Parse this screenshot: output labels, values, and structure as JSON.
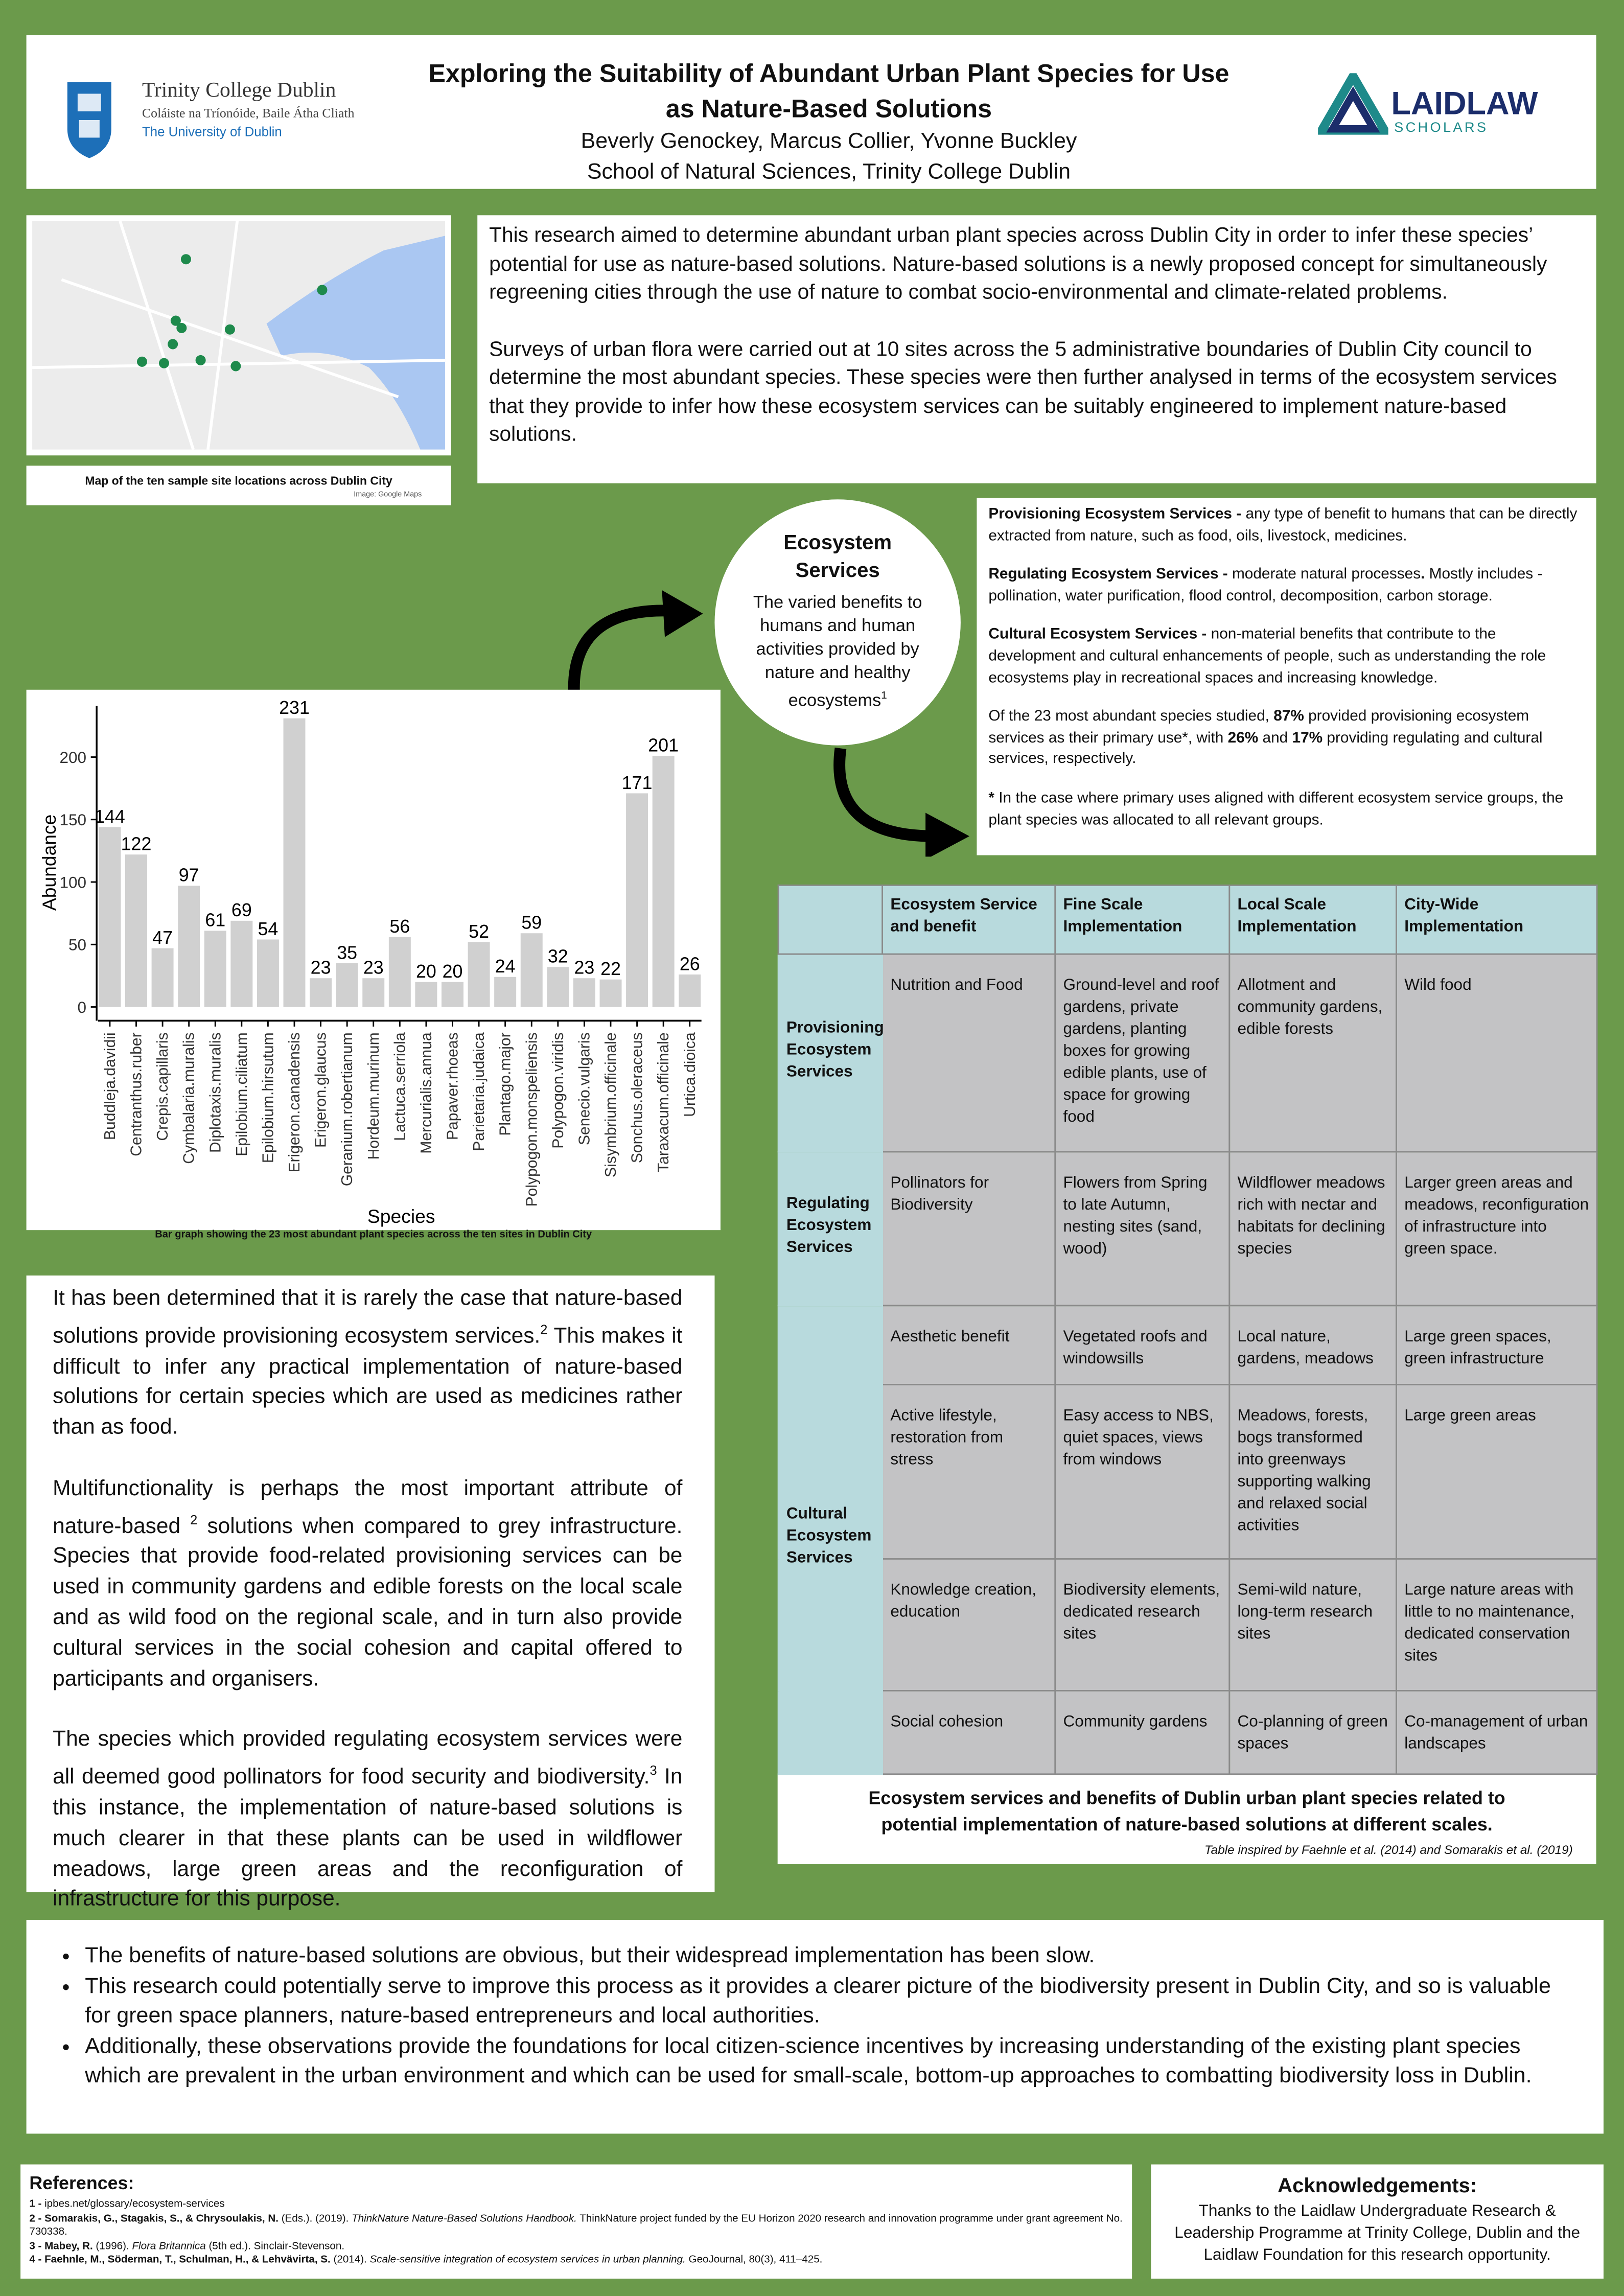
{
  "header": {
    "title": "Exploring the Suitability of Abundant Urban Plant Species for Use as Nature-Based Solutions",
    "authors": "Beverly Genockey, Marcus Collier, Yvonne Buckley",
    "affiliation": "School of Natural Sciences, Trinity College Dublin",
    "tcd": {
      "name": "Trinity College Dublin",
      "irish": "Coláiste na Tríonóide, Baile Átha Cliath",
      "university": "The University of Dublin"
    },
    "laidlaw": {
      "name": "LAIDLAW",
      "sub": "SCHOLARS"
    }
  },
  "map": {
    "caption": "Map of the ten sample site locations across Dublin City",
    "credit": "Image: Google Maps"
  },
  "intro": [
    "This research aimed to determine abundant urban plant species across Dublin City in order to infer these species’ potential for use as nature-based solutions. Nature-based solutions is a newly proposed concept for simultaneously regreening cities through the use of nature to combat socio-environmental and climate-related problems.",
    "Surveys of urban flora were carried out at 10 sites across the 5 administrative boundaries of Dublin City council to determine the most abundant species. These species were then further analysed in terms of the ecosystem services that they provide to infer how these ecosystem services can be suitably engineered to implement nature-based solutions."
  ],
  "circle": {
    "title": "Ecosystem Services",
    "text": [
      "The varied benefits to humans and human activities provided by nature and healthy ecosystems",
      {
        "text": "1",
        "sup": true
      }
    ]
  },
  "definitions": [
    [
      {
        "text": "Provisioning Ecosystem Services -",
        "b": true
      },
      " any type of benefit to humans that can be directly extracted from nature, such as food, oils, livestock, medicines."
    ],
    [
      {
        "text": "Regulating Ecosystem Services -",
        "b": true
      },
      " moderate natural processes",
      {
        "text": ".",
        "b": true
      },
      " Mostly includes - pollination, water purification, flood control, decomposition, carbon storage."
    ],
    [
      {
        "text": "Cultural Ecosystem Services -",
        "b": true
      },
      " non-material benefits that contribute to the development and cultural enhancements of people, such as understanding the role ecosystems play in recreational spaces and increasing knowledge."
    ],
    [
      "Of the 23 most abundant species studied, ",
      {
        "text": "87%",
        "b": true
      },
      " provided provisioning ecosystem services as their primary use*, with ",
      {
        "text": "26%",
        "b": true
      },
      " and ",
      {
        "text": "17%",
        "b": true
      },
      " providing regulating and cultural services, respectively."
    ],
    [
      {
        "text": "*",
        "b": true
      },
      " In the case where primary uses aligned with different ecosystem service groups, the plant species was allocated to all relevant groups."
    ]
  ],
  "chart_data": {
    "type": "bar",
    "caption": "Bar graph showing the 23 most abundant plant species across the ten sites in Dublin City",
    "x_label": "Species",
    "y_label": "Abundance",
    "categories": [
      "Buddleja.davidii",
      "Centranthus.ruber",
      "Crepis.capillaris",
      "Cymbalaria.muralis",
      "Diplotaxis.muralis",
      "Epilobium.ciliatum",
      "Epilobium.hirsutum",
      "Erigeron.canadensis",
      "Erigeron.glaucus",
      "Geranium.robertianum",
      "Hordeum.murinum",
      "Lactuca.serriola",
      "Mercurialis.annua",
      "Papaver.rhoeas",
      "Parietaria.judaica",
      "Plantago.major",
      "Polypogon.monspeliensis",
      "Polypogon.viridis",
      "Senecio.vulgaris",
      "Sisymbrium.officinale",
      "Sonchus.oleraceus",
      "Taraxacum.officinale",
      "Urtica.dioica"
    ],
    "values": [
      144,
      122,
      47,
      97,
      61,
      69,
      54,
      231,
      23,
      35,
      23,
      56,
      20,
      20,
      52,
      24,
      59,
      32,
      23,
      22,
      171,
      201,
      26
    ],
    "color": "#d0d0d0",
    "ylim": [
      -11,
      241
    ],
    "yticks": [
      0,
      50,
      100,
      150,
      200
    ],
    "grid": false
  },
  "discussion": [
    [
      "It has been determined that it is rarely the case that nature-based solutions provide provisioning ecosystem services.",
      {
        "text": "2",
        "sup": true
      },
      " This makes it difficult to infer any practical implementation of nature-based solutions for certain species which are used as medicines rather than as food."
    ],
    [
      "Multifunctionality is perhaps the most important attribute of nature-based ",
      {
        "text": "2",
        "sup": true
      },
      " solutions when compared to grey infrastructure. Species that provide food-related provisioning services can be used in community gardens and edible forests on the local scale and as wild food on the regional scale, and in turn also provide cultural services in the social cohesion and capital offered to participants and organisers."
    ],
    [
      "The species which provided regulating ecosystem services were all deemed good pollinators for food security and biodiversity.",
      {
        "text": "3",
        "sup": true
      },
      " In this instance, the implementation of nature-based solutions is much clearer in that these plants can be used in wildflower meadows, large green areas and the reconfiguration of infrastructure for this purpose."
    ]
  ],
  "table": {
    "header": [
      "Ecosystem Service and benefit",
      "Fine Scale Implementation",
      "Local Scale Implementation",
      "City-Wide Implementation"
    ],
    "groups": [
      {
        "name": "Provisioning Ecosystem Services",
        "rows": [
          [
            "Nutrition and Food",
            "Ground-level and roof gardens, private gardens, planting boxes for growing edible plants, use of space for growing food",
            "Allotment and community gardens, edible forests",
            "Wild food"
          ]
        ]
      },
      {
        "name": "Regulating Ecosystem Services",
        "rows": [
          [
            "Pollinators for Biodiversity",
            "Flowers from Spring to late Autumn, nesting sites (sand, wood)",
            "Wildflower meadows rich with nectar and habitats for declining species",
            "Larger green areas and meadows, reconfiguration of infrastructure into green space."
          ]
        ]
      },
      {
        "name": "Cultural Ecosystem Services",
        "rows": [
          [
            "Aesthetic benefit",
            "Vegetated roofs and windowsills",
            "Local nature, gardens, meadows",
            "Large green spaces, green infrastructure"
          ],
          [
            "Active lifestyle, restoration from stress",
            "Easy access to NBS, quiet spaces, views from windows",
            "Meadows, forests, bogs transformed into greenways supporting walking and relaxed social activities",
            "Large green areas"
          ],
          [
            "Knowledge creation, education",
            "Biodiversity elements, dedicated research sites",
            "Semi-wild nature, long-term research sites",
            "Large nature areas with little to no maintenance, dedicated conservation sites"
          ],
          [
            "Social cohesion",
            "Community gardens",
            "Co-planning of green spaces",
            "Co-management of urban landscapes"
          ]
        ]
      }
    ],
    "caption": "Ecosystem services and benefits of Dublin urban plant species related to potential implementation of nature-based solutions at different scales.",
    "note": "Table inspired by Faehnle et al. (2014) and Somarakis et al. (2019)"
  },
  "conclusions": [
    "The benefits of nature-based solutions are obvious, but their widespread implementation has been slow.",
    "This research could potentially serve to improve this process as it provides a clearer picture of the biodiversity present in Dublin City, and so is valuable for green space planners, nature-based entrepreneurs and local authorities.",
    "Additionally, these observations provide the foundations for local citizen-science incentives by increasing understanding of the existing plant species which are prevalent in the urban environment and which can be used for small-scale, bottom-up approaches to combatting biodiversity loss in Dublin."
  ],
  "references": {
    "title": "References:",
    "items": [
      [
        {
          "text": "1 -",
          "b": true
        },
        " ipbes.net/glossary/ecosystem-services"
      ],
      [
        {
          "text": "2 - Somarakis, G., Stagakis, S., & Chrysoulakis, N.",
          "b": true
        },
        " (Eds.). (2019). ",
        {
          "text": "ThinkNature Nature-Based Solutions Handbook.",
          "i": true
        },
        " ThinkNature project funded by the EU Horizon 2020 research and innovation programme under grant agreement No. 730338."
      ],
      [
        {
          "text": "3 - Mabey, R.",
          "b": true
        },
        " (1996). ",
        {
          "text": "Flora Britannica",
          "i": true
        },
        " (5th ed.). Sinclair-Stevenson."
      ],
      [
        {
          "text": "4 - Faehnle, M., Söderman, T., Schulman, H., & Lehvävirta, S.",
          "b": true
        },
        " (2014). ",
        {
          "text": "Scale-sensitive integration of ecosystem services in urban planning.",
          "i": true
        },
        " GeoJournal, 80(3), 411–425."
      ]
    ]
  },
  "acknowledgements": {
    "title": "Acknowledgements:",
    "text": "Thanks to the Laidlaw Undergraduate Research & Leadership Programme at Trinity College, Dublin and the Laidlaw Foundation for this research opportunity."
  }
}
